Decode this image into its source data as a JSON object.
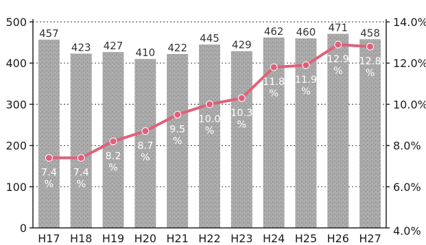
{
  "chart_data": {
    "type": "bar",
    "title": "",
    "xlabel": "",
    "ylabel": "",
    "categories": [
      "H17",
      "H18",
      "H19",
      "H20",
      "H21",
      "H22",
      "H23",
      "H24",
      "H25",
      "H26",
      "H27"
    ],
    "series": [
      {
        "type": "bar",
        "axis": "left",
        "values": [
          457,
          423,
          427,
          410,
          422,
          445,
          429,
          462,
          460,
          471,
          458
        ]
      },
      {
        "type": "line",
        "axis": "right",
        "values": [
          7.4,
          7.4,
          8.2,
          8.7,
          9.5,
          10.0,
          10.3,
          11.8,
          11.9,
          12.9,
          12.8
        ],
        "labels": [
          "7.4\n%",
          "7.4\n%",
          "8.2\n%",
          "8.7\n%",
          "9.5\n%",
          "10.0\n%",
          "10.3\n%",
          "11.8\n%",
          "11.9\n%",
          "12.9\n%",
          "12.8\n%"
        ]
      }
    ],
    "y_left": {
      "min": 0,
      "max": 500,
      "ticks": [
        "0",
        "100",
        "200",
        "300",
        "400",
        "500"
      ]
    },
    "y_right": {
      "min": 4.0,
      "max": 14.0,
      "ticks": [
        "4.0%",
        "6.0%",
        "8.0%",
        "10.0%",
        "12.0%",
        "14.0%"
      ]
    },
    "grid": true,
    "legend": "none",
    "colors": {
      "bar": "#a9a9a9",
      "line": "#e0607a",
      "marker": "#e0607a"
    }
  }
}
